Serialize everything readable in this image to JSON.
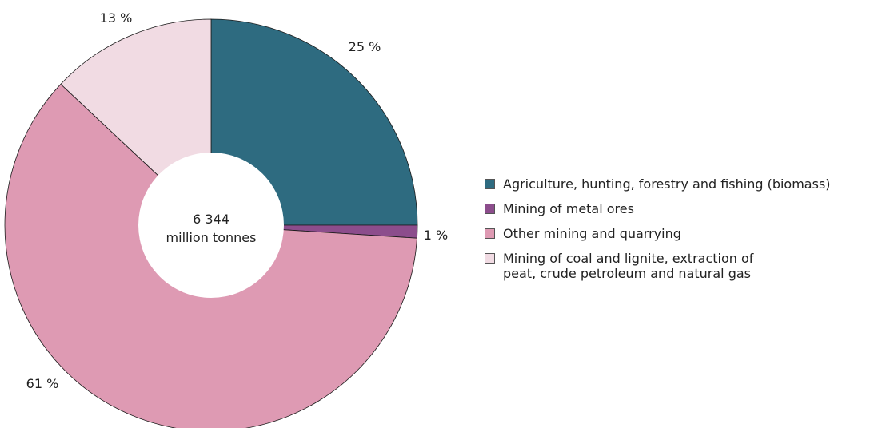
{
  "chart_data": {
    "type": "pie",
    "center_label": [
      "6 344",
      "million tonnes"
    ],
    "slices": [
      {
        "name": "Agriculture, hunting, forestry and fishing (biomass)",
        "value": 25,
        "label": "25 %",
        "color": "#2e6b80"
      },
      {
        "name": "Mining of metal ores",
        "value": 1,
        "label": "1 %",
        "color": "#8c4d8c"
      },
      {
        "name": "Other mining and quarrying",
        "value": 61,
        "label": "61 %",
        "color": "#de9ab3"
      },
      {
        "name": "Mining of coal and lignite, extraction of\npeat, crude petroleum and natural gas",
        "value": 13,
        "label": "13 %",
        "color": "#f1dbe3"
      }
    ],
    "legend_position": "right"
  }
}
